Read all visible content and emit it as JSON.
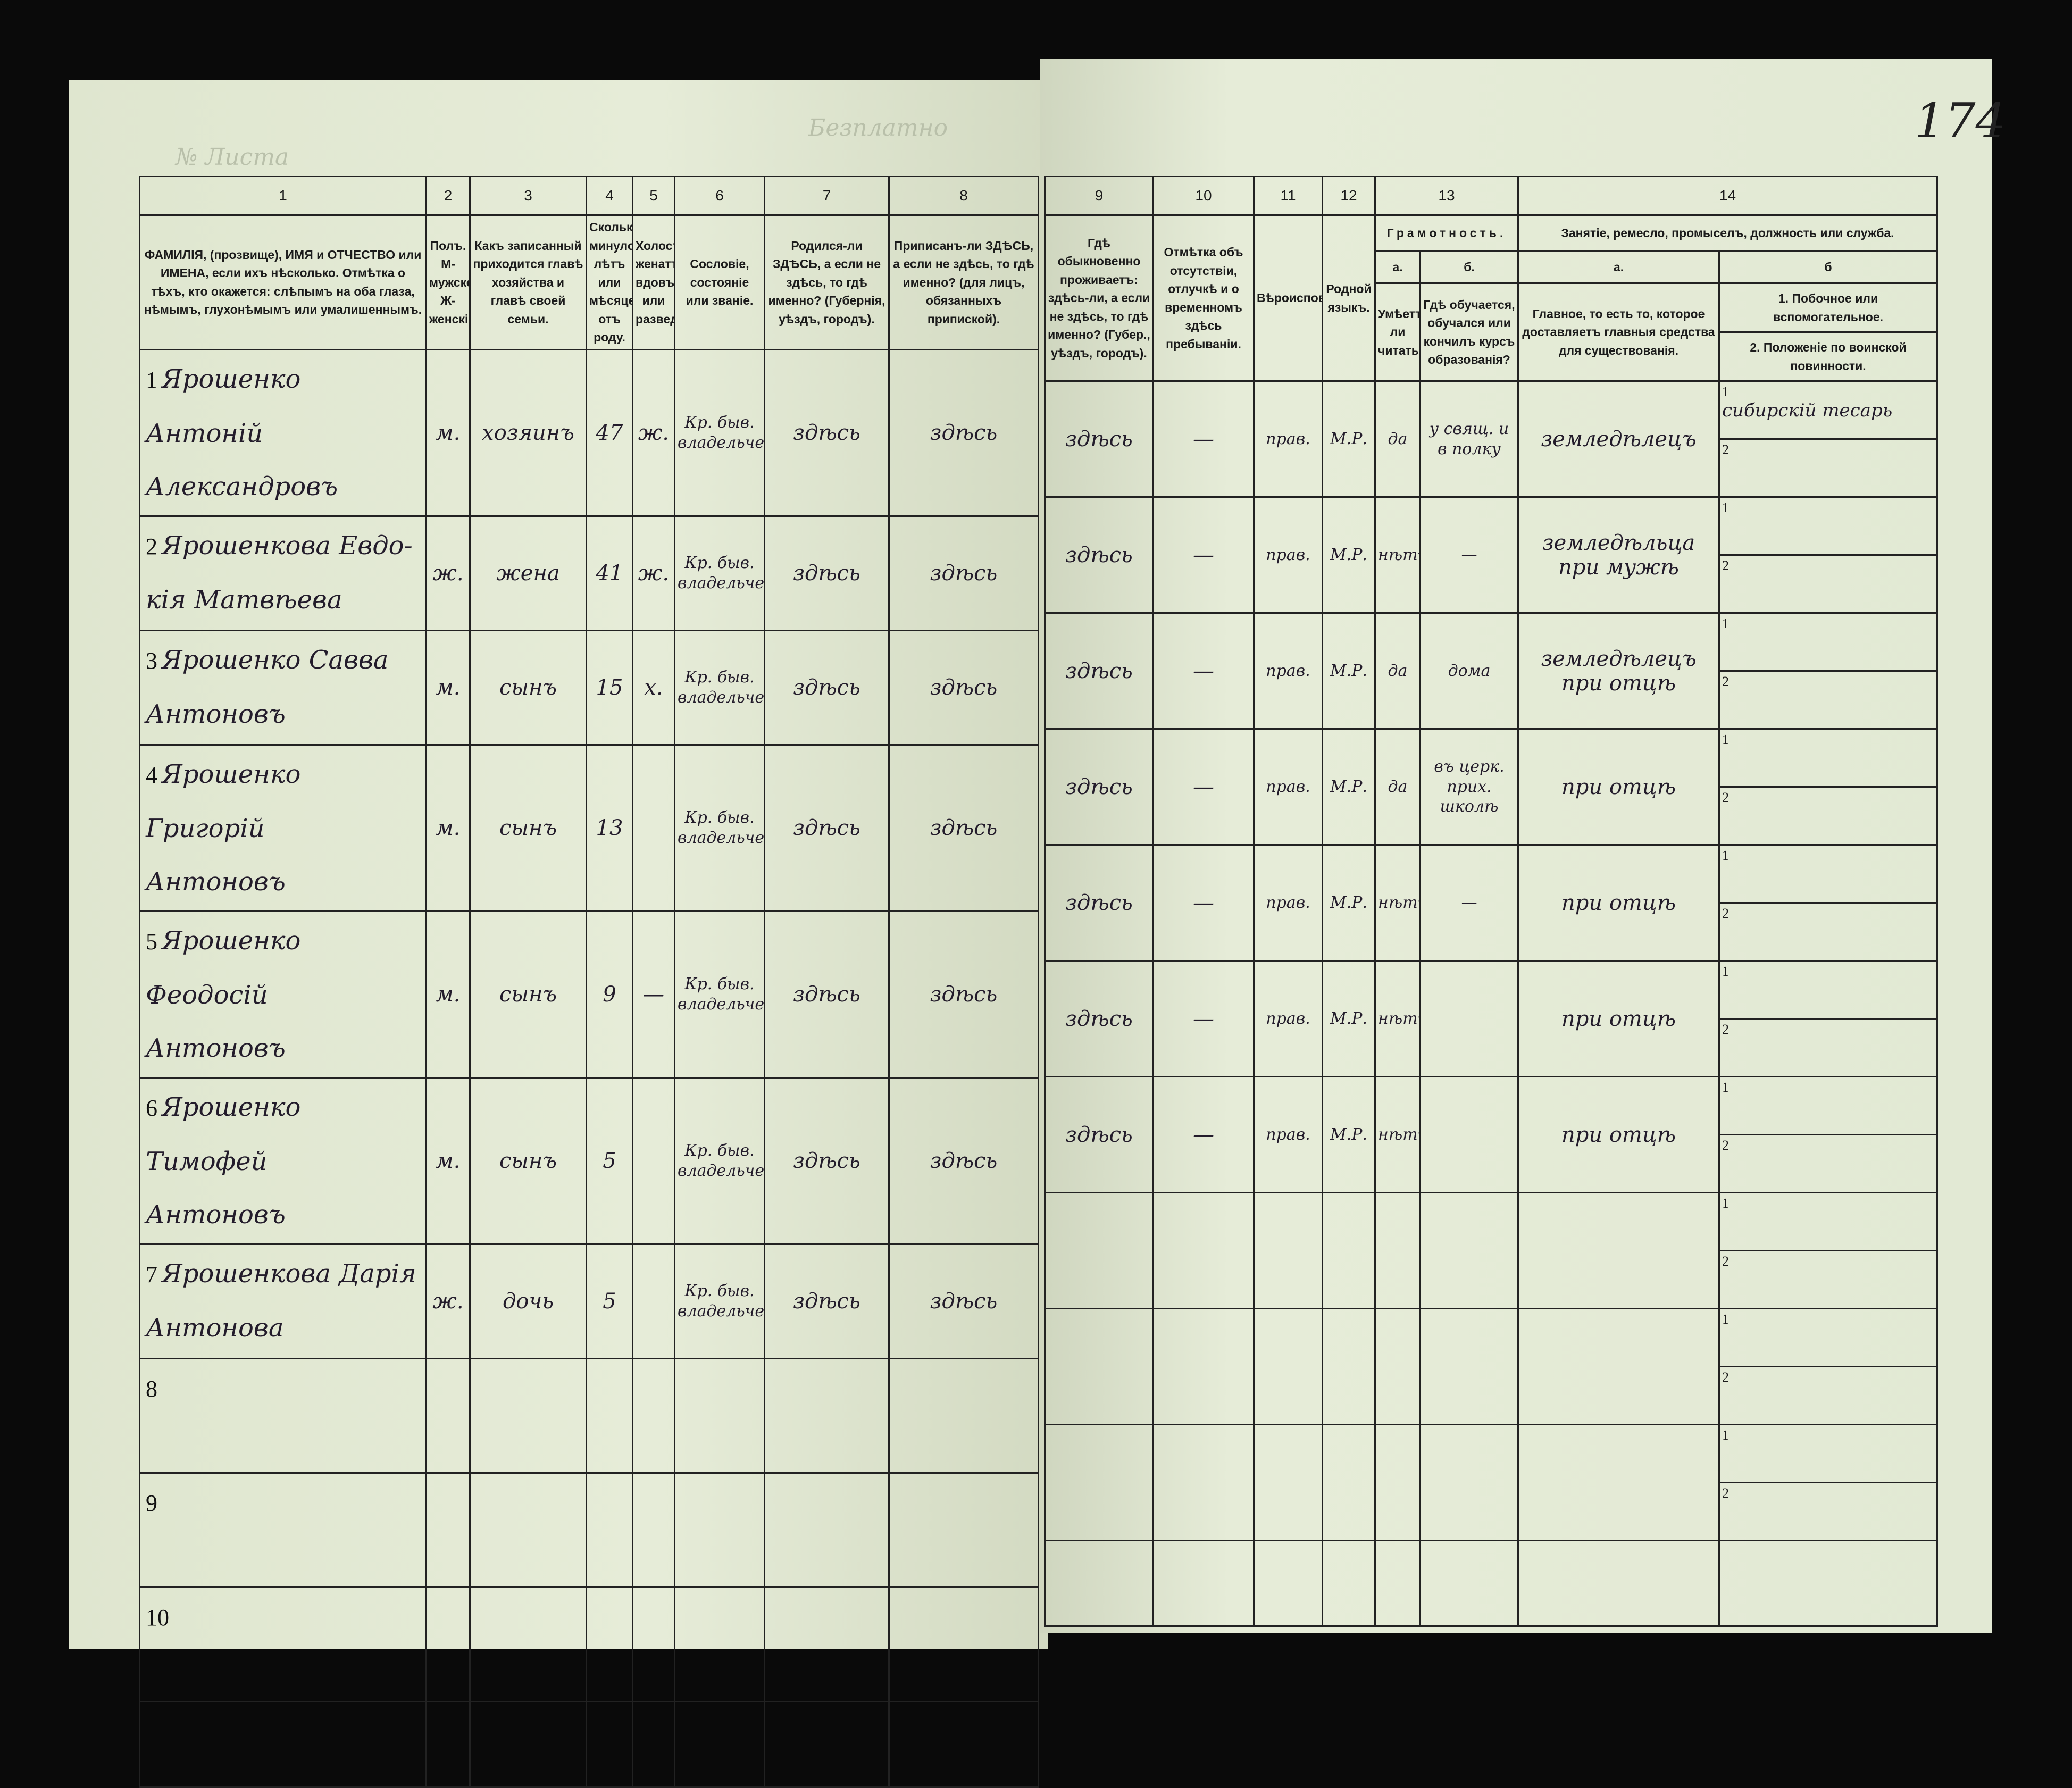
{
  "page_number": "174",
  "faint_header_left": "№ Листа",
  "faint_header_center": "Безплатно",
  "left_headers": [
    {
      "n": "1",
      "text": "ФАМИЛІЯ, (прозвище), ИМЯ и ОТЧЕСТВО или ИМЕНА, если ихъ нѣсколько. Отмѣтка о тѣхъ, кто окажется: слѣпымъ на оба глаза, нѣмымъ, глухонѣмымъ или умалишеннымъ."
    },
    {
      "n": "2",
      "text": "Полъ. М-мужской. Ж-женскій."
    },
    {
      "n": "3",
      "text": "Какъ записанный приходится главѣ хозяйства и главѣ своей семьи."
    },
    {
      "n": "4",
      "text": "Сколько минуло лѣтъ или мѣсяцевъ отъ роду."
    },
    {
      "n": "5",
      "text": "Холостъ, женатъ, вдовъ или разведенъ."
    },
    {
      "n": "6",
      "text": "Сословіе, состояніе или званіе."
    },
    {
      "n": "7",
      "text": "Родился-ли ЗДѢСЬ, а если не здѣсь, то гдѣ именно? (Губернія, уѣздъ, городъ)."
    },
    {
      "n": "8",
      "text": "Приписанъ-ли ЗДѢСЬ, а если не здѣсь, то гдѣ именно? (для лицъ, обязанныхъ припиской)."
    }
  ],
  "right_headers": {
    "c9": {
      "n": "9",
      "text": "Гдѣ обыкновенно проживаетъ: здѣсь-ли, а если не здѣсь, то гдѣ именно? (Губер., уѣздъ, городъ)."
    },
    "c10": {
      "n": "10",
      "text": "Отмѣтка объ отсутствіи, отлучкѣ и о временномъ здѣсь пребываніи."
    },
    "c11": {
      "n": "11",
      "text": "Вѣроисповѣданіе."
    },
    "c12": {
      "n": "12",
      "text": "Родной языкъ."
    },
    "c13": {
      "n": "13",
      "title": "Грамотность.",
      "a": "а.",
      "a_text": "Умѣетъ-ли читать?",
      "b": "б.",
      "b_text": "Гдѣ обучается, обучался или кончилъ курсъ образованія?"
    },
    "c14": {
      "n": "14",
      "title": "Занятіе, ремесло, промыселъ, должность или служба.",
      "a": "а.",
      "a_text": "Главное, то есть то, которое доставляетъ главныя средства для существованія.",
      "b": "б",
      "b1_text": "1. Побочное или вспомогательное.",
      "b2_text": "2. Положеніе по воинской повинности."
    }
  },
  "sub_labels": [
    "1",
    "2"
  ],
  "persons": [
    {
      "no": "1",
      "surname_name": "Ярошенко Антоній",
      "patronymic": "Александровъ",
      "sex": "м.",
      "relation": "хозяинъ",
      "age": "47",
      "marital": "ж.",
      "estate": "Кр. быв. владельческій",
      "born": "здѣсь",
      "registered": "здѣсь",
      "resides": "здѣсь",
      "absence": "—",
      "religion": "прав.",
      "language": "М.Р.",
      "literate": "да",
      "schooling": "у свящ. и в полку",
      "occupation": "земледѣлецъ",
      "side_occupation": "сибирскій тесарь",
      "military": ""
    },
    {
      "no": "2",
      "surname_name": "Ярошенкова Евдо-",
      "patronymic": "кія Матвѣева",
      "sex": "ж.",
      "relation": "жена",
      "age": "41",
      "marital": "ж.",
      "estate": "Кр. быв. владельческ.",
      "born": "здѣсь",
      "registered": "здѣсь",
      "resides": "здѣсь",
      "absence": "—",
      "religion": "прав.",
      "language": "М.Р.",
      "literate": "нѣтъ",
      "schooling": "—",
      "occupation": "земледѣльца при мужѣ",
      "side_occupation": "",
      "military": ""
    },
    {
      "no": "3",
      "surname_name": "Ярошенко Савва",
      "patronymic": "Антоновъ",
      "sex": "м.",
      "relation": "сынъ",
      "age": "15",
      "marital": "х.",
      "estate": "Кр. быв. владельческ.",
      "born": "здѣсь",
      "registered": "здѣсь",
      "resides": "здѣсь",
      "absence": "—",
      "religion": "прав.",
      "language": "М.Р.",
      "literate": "да",
      "schooling": "дома",
      "occupation": "земледѣлецъ при отцѣ",
      "side_occupation": "",
      "military": ""
    },
    {
      "no": "4",
      "surname_name": "Ярошенко Григорій",
      "patronymic": "Антоновъ",
      "sex": "м.",
      "relation": "сынъ",
      "age": "13",
      "marital": "",
      "estate": "Кр. быв. владельческ.",
      "born": "здѣсь",
      "registered": "здѣсь",
      "resides": "здѣсь",
      "absence": "—",
      "religion": "прав.",
      "language": "М.Р.",
      "literate": "да",
      "schooling": "въ церк. прих. школѣ",
      "occupation": "при отцѣ",
      "side_occupation": "",
      "military": ""
    },
    {
      "no": "5",
      "surname_name": "Ярошенко Феодосій",
      "patronymic": "Антоновъ",
      "sex": "м.",
      "relation": "сынъ",
      "age": "9",
      "marital": "—",
      "estate": "Кр. быв. владельческ.",
      "born": "здѣсь",
      "registered": "здѣсь",
      "resides": "здѣсь",
      "absence": "—",
      "religion": "прав.",
      "language": "М.Р.",
      "literate": "нѣтъ",
      "schooling": "—",
      "occupation": "при отцѣ",
      "side_occupation": "",
      "military": ""
    },
    {
      "no": "6",
      "surname_name": "Ярошенко Тимофей",
      "patronymic": "Антоновъ",
      "sex": "м.",
      "relation": "сынъ",
      "age": "5",
      "marital": "",
      "estate": "Кр. быв. владельческ.",
      "born": "здѣсь",
      "registered": "здѣсь",
      "resides": "здѣсь",
      "absence": "—",
      "religion": "прав.",
      "language": "М.Р.",
      "literate": "нѣтъ",
      "schooling": "",
      "occupation": "при отцѣ",
      "side_occupation": "",
      "military": ""
    },
    {
      "no": "7",
      "surname_name": "Ярошенкова Дарія",
      "patronymic": "Антонова",
      "sex": "ж.",
      "relation": "дочь",
      "age": "5",
      "marital": "",
      "estate": "Кр. быв. владельческ.",
      "born": "здѣсь",
      "registered": "здѣсь",
      "resides": "здѣсь",
      "absence": "—",
      "religion": "прав.",
      "language": "М.Р.",
      "literate": "нѣтъ",
      "schooling": "",
      "occupation": "при отцѣ",
      "side_occupation": "",
      "military": ""
    },
    {
      "no": "8"
    },
    {
      "no": "9"
    },
    {
      "no": "10"
    }
  ]
}
